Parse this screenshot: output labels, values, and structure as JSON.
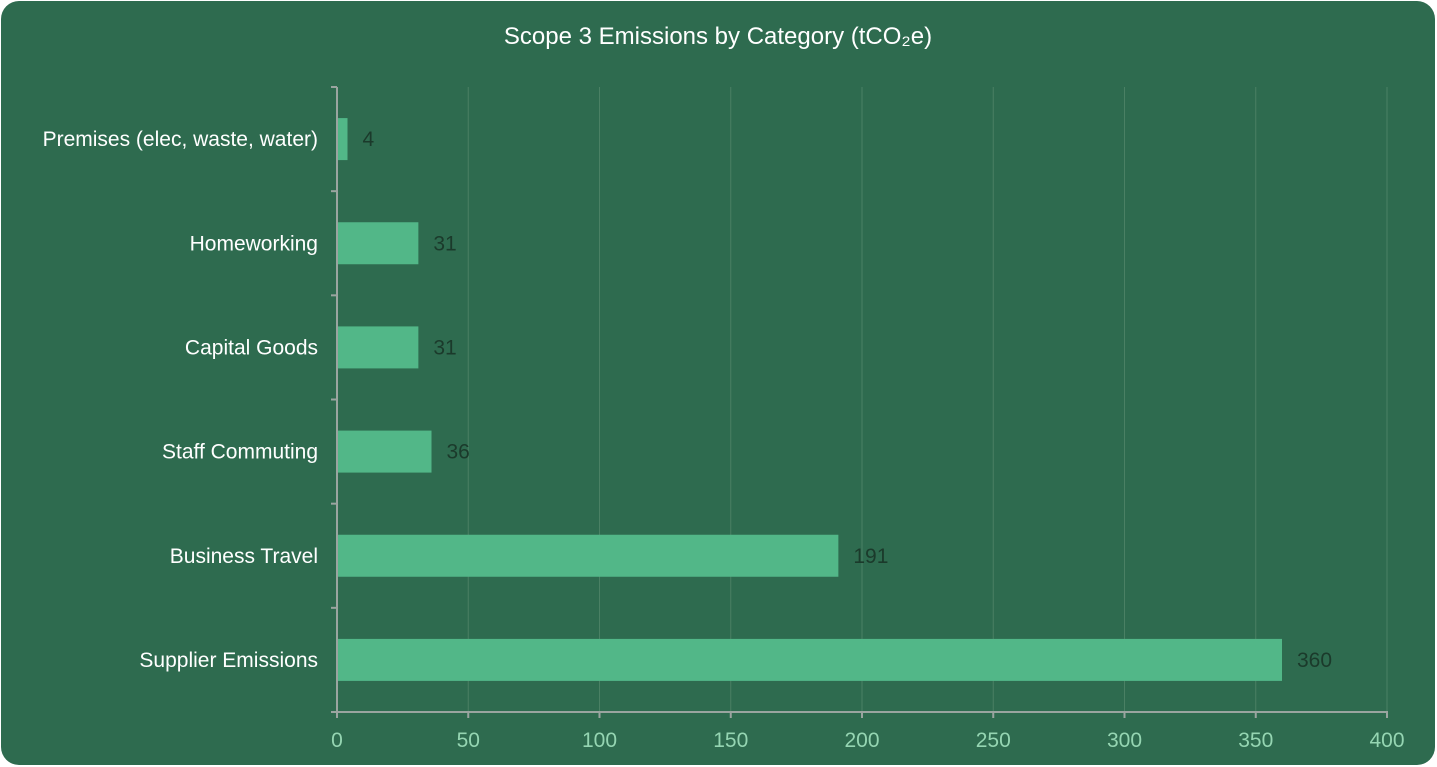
{
  "chart_data": {
    "type": "bar",
    "orientation": "horizontal",
    "title": "Scope 3 Emissions by Category (tCO₂e)",
    "categories": [
      "Premises (elec, waste, water)",
      "Homeworking",
      "Capital Goods",
      "Staff Commuting",
      "Business Travel",
      "Supplier Emissions"
    ],
    "values": [
      4,
      31,
      31,
      36,
      191,
      360
    ],
    "xlim": [
      0,
      400
    ],
    "x_ticks": [
      0,
      50,
      100,
      150,
      200,
      250,
      300,
      350,
      400
    ],
    "grid": "vertical",
    "legend": "none",
    "data_labels": true,
    "colors": {
      "background": "#2e6b4f",
      "bar": "#52b788",
      "grid": "#4a8064",
      "axis": "#9aa5a0",
      "tick_label": "#95d5b2",
      "category_label": "#ffffff",
      "value_label": "#1b3a2b"
    }
  }
}
